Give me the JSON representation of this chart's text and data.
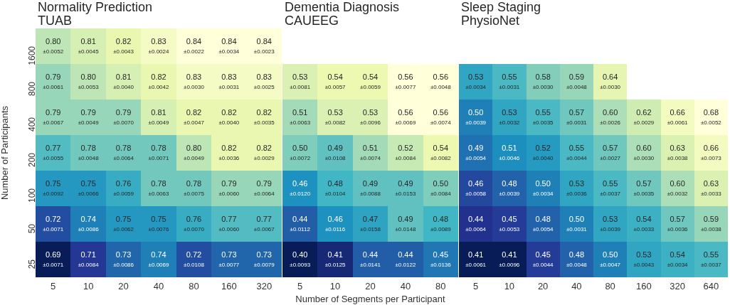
{
  "chart_data": [
    {
      "type": "heatmap",
      "data_labels": true,
      "title": "Normality Prediction",
      "subtitle": "TUAB",
      "ylabel": "Number of Participants",
      "categories": [
        "5",
        "10",
        "20",
        "40",
        "80",
        "160",
        "320"
      ],
      "y_categories": [
        "1600",
        "800",
        "400",
        "200",
        "100",
        "50",
        "25"
      ],
      "cells": [
        [
          0.8,
          0.81,
          0.82,
          0.83,
          0.84,
          0.84,
          0.84
        ],
        [
          0.79,
          0.8,
          0.81,
          0.82,
          0.83,
          0.83,
          0.83
        ],
        [
          0.79,
          0.79,
          0.79,
          0.81,
          0.82,
          0.82,
          0.82
        ],
        [
          0.77,
          0.78,
          0.78,
          0.78,
          0.8,
          0.82,
          0.82
        ],
        [
          0.75,
          0.75,
          0.76,
          0.78,
          0.78,
          0.79,
          0.79
        ],
        [
          0.72,
          0.74,
          0.75,
          0.75,
          0.76,
          0.77,
          0.77
        ],
        [
          0.69,
          0.71,
          0.73,
          0.74,
          0.72,
          0.73,
          0.73
        ]
      ],
      "cell_labels": [
        [
          "0.80",
          "0.81",
          "0.82",
          "0.83",
          "0.84",
          "0.84",
          "0.84"
        ],
        [
          "0.79",
          "0.80",
          "0.81",
          "0.82",
          "0.83",
          "0.83",
          "0.83"
        ],
        [
          "0.79",
          "0.79",
          "0.79",
          "0.81",
          "0.82",
          "0.82",
          "0.82"
        ],
        [
          "0.77",
          "0.78",
          "0.78",
          "0.78",
          "0.80",
          "0.82",
          "0.82"
        ],
        [
          "0.75",
          "0.75",
          "0.76",
          "0.78",
          "0.78",
          "0.79",
          "0.79"
        ],
        [
          "0.72",
          "0.74",
          "0.75",
          "0.75",
          "0.76",
          "0.77",
          "0.77"
        ],
        [
          "0.69",
          "0.71",
          "0.73",
          "0.74",
          "0.72",
          "0.73",
          "0.73"
        ]
      ],
      "annotations": [
        "±0.0052",
        "±0.0045",
        "±0.0043",
        "±0.0024",
        "±0.0022",
        "±0.0034",
        "±0.0023",
        "±0.0061",
        "±0.0053",
        "±0.0040",
        "±0.0042",
        "±0.0030",
        "±0.0031",
        "±0.0025",
        "±0.0067",
        "±0.0049",
        "±0.0070",
        "±0.0049",
        "±0.0047",
        "±0.0040",
        "±0.0035",
        "±0.0055",
        "±0.0048",
        "±0.0064",
        "±0.0071",
        "±0.0049",
        "±0.0036",
        "±0.0029",
        "±0.0092",
        "±0.0066",
        "±0.0059",
        "±0.0063",
        "±0.0075",
        "±0.0060",
        "±0.0064",
        "±0.0071",
        "±0.0086",
        "±0.0062",
        "±0.0076",
        "±0.0070",
        "±0.0060",
        "±0.0067",
        "±0.0071",
        "±0.0084",
        "±0.0086",
        "±0.0069",
        "±0.0108",
        "±0.0077",
        "±0.0079"
      ]
    },
    {
      "type": "heatmap",
      "data_labels": true,
      "title": "Dementia Diagnosis",
      "subtitle": "CAUEEG",
      "xlabel": "Number of Segments per Participant",
      "tick_labels": "x",
      "categories": [
        "5",
        "10",
        "20",
        "40",
        "80"
      ],
      "y_categories": [
        "800",
        "400",
        "200",
        "100",
        "50",
        "25"
      ],
      "cells": [
        [
          0.53,
          0.54,
          0.54,
          0.56,
          0.56
        ],
        [
          0.51,
          0.53,
          0.53,
          0.56,
          0.56
        ],
        [
          0.5,
          0.49,
          0.51,
          0.52,
          0.54
        ],
        [
          0.46,
          0.48,
          0.49,
          0.49,
          0.5
        ],
        [
          0.44,
          0.46,
          0.47,
          0.49,
          0.48
        ],
        [
          0.4,
          0.41,
          0.44,
          0.44,
          0.45
        ]
      ],
      "cell_labels": [
        [
          "0.53",
          "0.54",
          "0.54",
          "0.56",
          "0.56"
        ],
        [
          "0.51",
          "0.53",
          "0.53",
          "0.56",
          "0.56"
        ],
        [
          "0.50",
          "0.49",
          "0.51",
          "0.52",
          "0.54"
        ],
        [
          "0.46",
          "0.48",
          "0.49",
          "0.49",
          "0.50"
        ],
        [
          "0.44",
          "0.46",
          "0.47",
          "0.49",
          "0.48"
        ],
        [
          "0.40",
          "0.41",
          "0.44",
          "0.44",
          "0.45"
        ]
      ],
      "annotations": [
        "±0.0081",
        "±0.0057",
        "±0.0059",
        "±0.0077",
        "±0.0048",
        "±0.0063",
        "±0.0082",
        "±0.0096",
        "±0.0069",
        "±0.0074",
        "±0.0072",
        "±0.0108",
        "±0.0074",
        "±0.0084",
        "±0.0082",
        "±0.0120",
        "±0.0104",
        "±0.0088",
        "±0.0153",
        "±0.0084",
        "±0.0112",
        "±0.0116",
        "±0.0158",
        "±0.0148",
        "±0.0089",
        "±0.0093",
        "±0.0125",
        "±0.0141",
        "±0.0122",
        "±0.0136"
      ]
    },
    {
      "type": "heatmap",
      "data_labels": true,
      "title": "Sleep Staging",
      "subtitle": "PhysioNet",
      "tick_labels": "x",
      "categories": [
        "5",
        "10",
        "20",
        "40",
        "80",
        "160",
        "320",
        "640"
      ],
      "y_categories": [
        "800",
        "400",
        "200",
        "100",
        "50",
        "25"
      ],
      "cells": [
        [
          0.53,
          0.55,
          0.58,
          0.59,
          0.64,
          null,
          null,
          null
        ],
        [
          0.5,
          0.53,
          0.55,
          0.57,
          0.6,
          0.62,
          0.66,
          0.68
        ],
        [
          0.49,
          0.51,
          0.52,
          0.55,
          0.57,
          0.6,
          0.63,
          0.66
        ],
        [
          0.46,
          0.48,
          0.5,
          0.53,
          0.55,
          0.57,
          0.6,
          0.63
        ],
        [
          0.44,
          0.45,
          0.48,
          0.5,
          0.53,
          0.54,
          0.57,
          0.59
        ],
        [
          0.41,
          0.41,
          0.45,
          0.48,
          0.5,
          0.53,
          0.54,
          0.55
        ]
      ],
      "cell_labels": [
        [
          "0.53",
          "0.55",
          "0.58",
          "0.59",
          "0.64",
          null,
          null,
          null
        ],
        [
          "0.50",
          "0.53",
          "0.55",
          "0.57",
          "0.60",
          "0.62",
          "0.66",
          "0.68"
        ],
        [
          "0.49",
          "0.51",
          "0.52",
          "0.55",
          "0.57",
          "0.60",
          "0.63",
          "0.66"
        ],
        [
          "0.46",
          "0.48",
          "0.50",
          "0.53",
          "0.55",
          "0.57",
          "0.60",
          "0.63"
        ],
        [
          "0.44",
          "0.45",
          "0.48",
          "0.50",
          "0.53",
          "0.54",
          "0.57",
          "0.59"
        ],
        [
          "0.41",
          "0.41",
          "0.45",
          "0.48",
          "0.50",
          "0.53",
          "0.54",
          "0.55"
        ]
      ],
      "annotations": [
        "±0.0034",
        "±0.0031",
        "±0.0030",
        "±0.0048",
        "±0.0030",
        "±0.0039",
        "±0.0032",
        "±0.0035",
        "±0.0031",
        "±0.0026",
        "±0.0029",
        "±0.0061",
        "±0.0052",
        "±0.0054",
        "±0.0046",
        "±0.0040",
        "±0.0044",
        "±0.0027",
        "±0.0030",
        "±0.0038",
        "±0.0073",
        "±0.0058",
        "±0.0039",
        "±0.0034",
        "±0.0036",
        "±0.0037",
        "±0.0035",
        "±0.0032",
        "±0.0033",
        "±0.0064",
        "±0.0053",
        "±0.0054",
        "±0.0031",
        "±0.0039",
        "±0.0033",
        "±0.0036",
        "±0.0038",
        "±0.0061",
        "±0.0096",
        "±0.0044",
        "±0.0048",
        "±0.0047",
        "±0.0043",
        "±0.0034",
        "±0.0037"
      ]
    }
  ]
}
